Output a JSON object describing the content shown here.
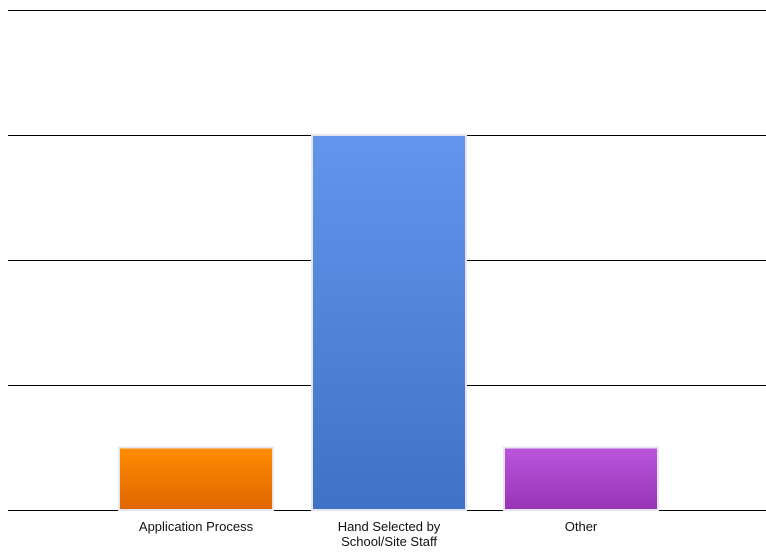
{
  "chart_data": {
    "type": "bar",
    "categories": [
      "Application Process",
      "Hand Selected by School/Site Staff",
      "Other"
    ],
    "values": [
      1,
      6,
      1
    ],
    "ylim": [
      0,
      8
    ],
    "yticks": [
      0,
      2,
      4,
      6,
      8
    ],
    "grid": true,
    "legend": "none",
    "title": "",
    "xlabel": "",
    "ylabel": "",
    "colors": [
      {
        "top": "#ff8c00",
        "bottom": "#e06500"
      },
      {
        "top": "#6495ed",
        "bottom": "#3f72c6"
      },
      {
        "top": "#bb55dd",
        "bottom": "#9933b5"
      }
    ]
  },
  "labels": {
    "cat0": "Application Process",
    "cat1_line1": "Hand Selected by",
    "cat1_line2": "School/Site Staff",
    "cat2": "Other"
  }
}
